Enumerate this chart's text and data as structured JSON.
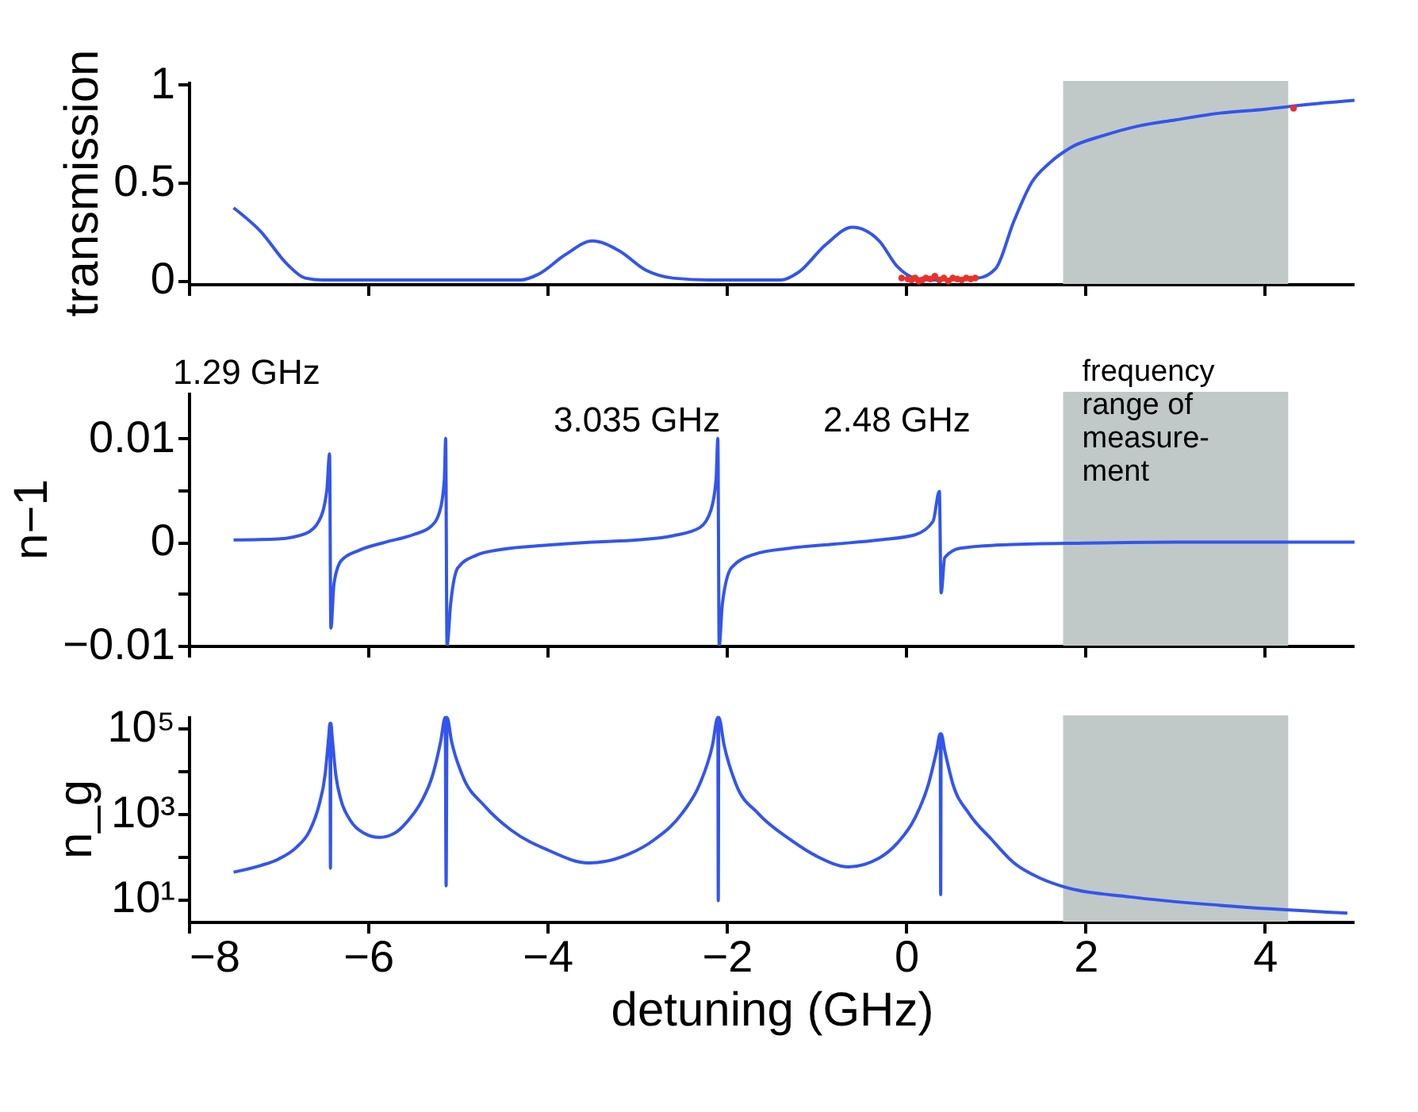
{
  "chart_data": [
    {
      "type": "line",
      "ylabel": "transmission",
      "xlim": [
        -8,
        5
      ],
      "xticks": [
        -8,
        -6,
        -4,
        -2,
        0,
        2,
        4
      ],
      "ylim": [
        -0.02,
        1.02
      ],
      "yticks": [
        {
          "value": 0,
          "label": "0"
        },
        {
          "value": 0.5,
          "label": "0.5"
        },
        {
          "value": 1,
          "label": "1"
        }
      ],
      "tick_labels": "y",
      "grid": false,
      "bands": [
        {
          "axis": "x",
          "from": 1.75,
          "to": 4.26,
          "color": "#c0c9c8"
        }
      ],
      "series": [
        {
          "color": "#3355ee",
          "x": [
            -7.5,
            -7.2,
            -6.9,
            -6.7,
            -6.5,
            -5,
            -4.3,
            -4.1,
            -3.8,
            -3.5,
            -3.2,
            -2.9,
            -2.6,
            -2.2,
            -1.4,
            -1.2,
            -0.9,
            -0.6,
            -0.3,
            -0.1,
            0.1,
            0.3,
            0.8,
            1.0,
            1.2,
            1.4,
            1.6,
            1.84,
            2.2,
            2.6,
            3,
            3.5,
            4,
            4.5,
            5
          ],
          "values": [
            0.37,
            0.25,
            0.08,
            0.01,
            0,
            0,
            0,
            0.03,
            0.13,
            0.2,
            0.15,
            0.05,
            0.01,
            0,
            0,
            0.04,
            0.18,
            0.27,
            0.2,
            0.07,
            0.01,
            0,
            0.01,
            0.06,
            0.3,
            0.5,
            0.6,
            0.68,
            0.74,
            0.79,
            0.82,
            0.855,
            0.875,
            0.9,
            0.92
          ]
        },
        {
          "type": "scatter",
          "color": "#e8322a",
          "x": [
            -0.05,
            0.02,
            0.06,
            0.1,
            0.14,
            0.18,
            0.22,
            0.27,
            0.32,
            0.37,
            0.42,
            0.47,
            0.52,
            0.57,
            0.62,
            0.67,
            0.72,
            0.77,
            4.32
          ],
          "values": [
            0.01,
            0.005,
            0.0,
            0.01,
            -0.005,
            0.0,
            0.01,
            0.005,
            0.02,
            0.0,
            0.01,
            -0.005,
            0.01,
            0.005,
            0.0,
            0.01,
            0.005,
            0.01,
            0.88
          ]
        }
      ]
    },
    {
      "type": "line",
      "ylabel": "n−1",
      "xlim": [
        -8,
        5
      ],
      "xticks": [
        -8,
        -6,
        -4,
        -2,
        0,
        2,
        4
      ],
      "ylim": [
        -0.01,
        0.0145
      ],
      "yticks": [
        {
          "value": -0.01,
          "label": "−0.01"
        },
        {
          "value": -0.005,
          "label": null
        },
        {
          "value": 0,
          "label": "0"
        },
        {
          "value": 0.005,
          "label": null
        },
        {
          "value": 0.01,
          "label": "0.01"
        }
      ],
      "tick_labels": "y",
      "grid": false,
      "bands": [
        {
          "axis": "x",
          "from": 1.75,
          "to": 4.26,
          "color": "#c0c9c8",
          "label": "frequency\nrange of\nmeasure-\nment"
        }
      ],
      "annotations": [
        "1.29 GHz",
        "3.035 GHz",
        "2.48 GHz"
      ],
      "series": [
        {
          "color": "#3355ee",
          "x": [
            -7.5,
            -7,
            -6.7,
            -6.55,
            -6.46,
            -6.43,
            -6.415,
            -6.38,
            -6.3,
            -6.1,
            -5.8,
            -5.5,
            -5.3,
            -5.2,
            -5.15,
            -5.135,
            -5.12,
            -5.08,
            -5,
            -4.8,
            -4.5,
            -4,
            -3.5,
            -3,
            -2.6,
            -2.3,
            -2.18,
            -2.12,
            -2.1,
            -2.085,
            -2.05,
            -1.95,
            -1.7,
            -1.3,
            -0.8,
            -0.3,
            0.1,
            0.3,
            0.37,
            0.39,
            0.43,
            0.6,
            1,
            2,
            3,
            5
          ],
          "values": [
            0.0002,
            0.0003,
            0.0008,
            0.002,
            0.005,
            0.0085,
            -0.0083,
            -0.004,
            -0.0018,
            -0.0008,
            0,
            0.0007,
            0.0015,
            0.003,
            0.006,
            0.01,
            -0.01,
            -0.006,
            -0.0025,
            -0.0013,
            -0.0007,
            -0.0003,
            0,
            0.0002,
            0.0006,
            0.0014,
            0.003,
            0.006,
            0.01,
            -0.01,
            -0.006,
            -0.0025,
            -0.0012,
            -0.0006,
            -0.0002,
            0.0002,
            0.0007,
            0.002,
            0.0049,
            -0.0049,
            -0.0015,
            -0.0006,
            -0.0003,
            -0.0001,
            0,
            0
          ]
        }
      ]
    },
    {
      "type": "line",
      "ylabel": "n_g",
      "xlabel": "detuning (GHz)",
      "xlim": [
        -8,
        5
      ],
      "xticks": [
        -8,
        -6,
        -4,
        -2,
        0,
        2,
        4
      ],
      "log": true,
      "ylim": [
        2.9,
        200000
      ],
      "yticks": [
        {
          "value": 10,
          "label": "10¹"
        },
        {
          "value": 100,
          "label": null
        },
        {
          "value": 1000,
          "label": "10³"
        },
        {
          "value": 10000,
          "label": null
        },
        {
          "value": 100000,
          "label": "10⁵"
        }
      ],
      "grid": false,
      "bands": [
        {
          "axis": "x",
          "from": 1.75,
          "to": 4.26,
          "color": "#c0c9c8"
        }
      ],
      "series": [
        {
          "color": "#3355ee",
          "x": [
            -7.5,
            -7.2,
            -7,
            -6.8,
            -6.65,
            -6.55,
            -6.48,
            -6.44,
            -6.425,
            -6.42,
            -6.415,
            -6.4,
            -6.36,
            -6.3,
            -6.2,
            -6.05,
            -5.87,
            -5.7,
            -5.55,
            -5.4,
            -5.28,
            -5.19,
            -5.14,
            -5.13,
            -5.12,
            -5.07,
            -4.95,
            -4.7,
            -4.4,
            -4,
            -3.54,
            -3.1,
            -2.8,
            -2.5,
            -2.3,
            -2.16,
            -2.1,
            -2.095,
            -2.09,
            -2.03,
            -1.9,
            -1.65,
            -1.3,
            -1,
            -0.64,
            -0.3,
            -0.1,
            0.1,
            0.25,
            0.34,
            0.38,
            0.385,
            0.39,
            0.43,
            0.52,
            0.7,
            0.95,
            1.2,
            1.5,
            1.76,
            2.5,
            3.5,
            4.92
          ],
          "values": [
            42,
            60,
            85,
            160,
            400,
            1500,
            8000,
            60000,
            130000,
            52,
            130000,
            60000,
            8000,
            2000,
            700,
            350,
            275,
            350,
            700,
            2000,
            8000,
            50000,
            180000,
            20,
            180000,
            50000,
            8000,
            1500,
            400,
            140,
            69,
            110,
            250,
            1000,
            5000,
            40000,
            180000,
            9,
            180000,
            40000,
            5000,
            1000,
            250,
            100,
            56,
            90,
            200,
            800,
            5000,
            30000,
            74000,
            12.5,
            74000,
            30000,
            5000,
            1000,
            250,
            70,
            30,
            19,
            11,
            7,
            4.6
          ]
        }
      ]
    }
  ]
}
